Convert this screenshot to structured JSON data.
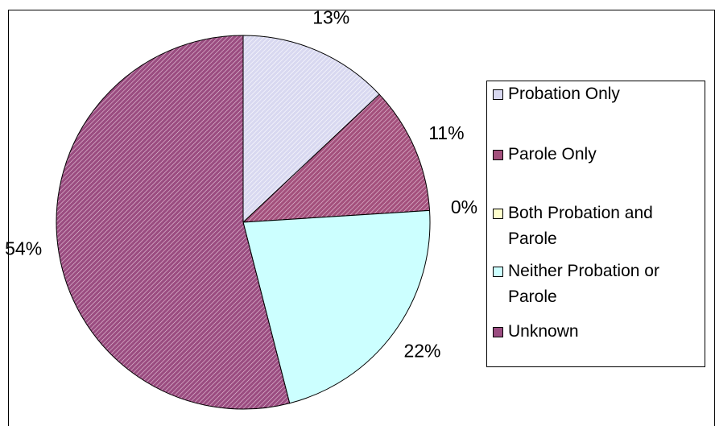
{
  "chart_data": {
    "type": "pie",
    "categories": [
      "Probation Only",
      "Parole Only",
      "Both Probation and Parole",
      "Neither Probation or Parole",
      "Unknown"
    ],
    "values": [
      13,
      11,
      0,
      22,
      54
    ],
    "value_labels": [
      "13%",
      "11%",
      "0%",
      "22%",
      "54%"
    ],
    "colors": [
      "#d8d8f0",
      "#a3507c",
      "#ffffcc",
      "#ccffff",
      "#9a4c80"
    ],
    "legend": "right"
  }
}
